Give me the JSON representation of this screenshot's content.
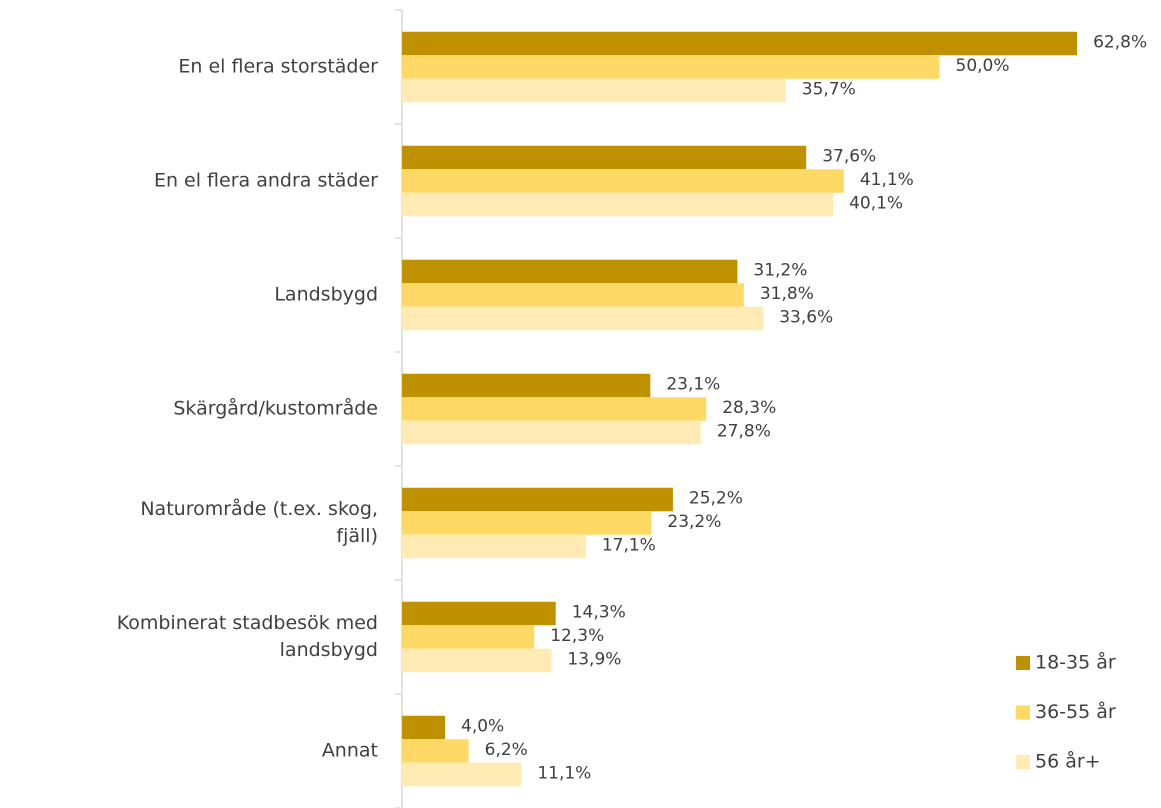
{
  "chart_data": {
    "type": "bar",
    "orientation": "horizontal",
    "categories": [
      [
        "En el flera storstäder"
      ],
      [
        "En el flera andra städer"
      ],
      [
        "Landsbygd"
      ],
      [
        "Skärgård/kustområde"
      ],
      [
        "Naturområde (t.ex. skog,",
        "fjäll)"
      ],
      [
        "Kombinerat stadbesök med",
        "landsbygd"
      ],
      [
        "Annat"
      ]
    ],
    "series": [
      {
        "name": "18-35 år",
        "color": "#bf9000",
        "values": [
          62.8,
          37.6,
          31.2,
          23.1,
          25.2,
          14.3,
          4.0
        ],
        "value_labels": [
          "62,8%",
          "37,6%",
          "31,2%",
          "23,1%",
          "25,2%",
          "14,3%",
          "4,0%"
        ]
      },
      {
        "name": "36-55 år",
        "color": "#ffd966",
        "values": [
          50.0,
          41.1,
          31.8,
          28.3,
          23.2,
          12.3,
          6.2
        ],
        "value_labels": [
          "50,0%",
          "41,1%",
          "31,8%",
          "28,3%",
          "23,2%",
          "12,3%",
          "6,2%"
        ]
      },
      {
        "name": "56 år+",
        "color": "#ffebb3",
        "values": [
          35.7,
          40.1,
          33.6,
          27.8,
          17.1,
          13.9,
          11.1
        ],
        "value_labels": [
          "35,7%",
          "40,1%",
          "33,6%",
          "27,8%",
          "17,1%",
          "13,9%",
          "11,1%"
        ]
      }
    ],
    "legend": "bottom-right"
  }
}
